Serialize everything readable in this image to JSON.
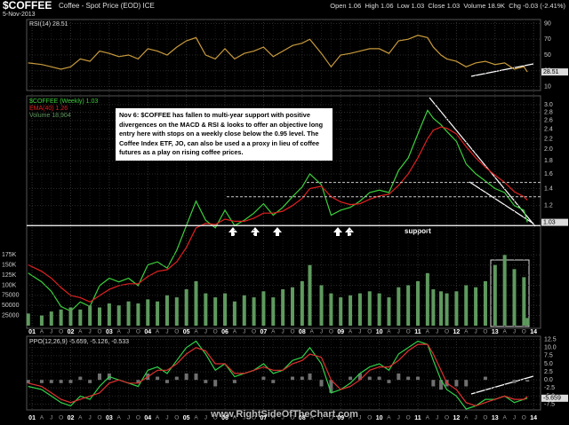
{
  "header": {
    "symbol": "$COFFEE",
    "name": "Coffee - Spot Price (EOD) ICE",
    "date": "5-Nov-2013",
    "quote": "Open 1.06  High 1.06  Low 1.03  Close 1.03  Volume 18.9K  Chg -0.03 (-2.41%)"
  },
  "annotation": "Nov 6: $COFFEE has fallen to multi-year support with positive divergences on the MACD & RSI & looks to offer an objective long entry here with stops on a weekly close below the 0.95 level.  The Coffee Index ETF, JO, can also be used a a proxy in lieu of coffee futures as a play on rising coffee prices.",
  "support_label": "support",
  "watermark": "www.RightSideOfTheChart.com",
  "chart_data": [
    {
      "type": "line",
      "title": "RSI(14) 28.51",
      "xlim": [
        2000.86,
        2014.18
      ],
      "ylim": [
        5,
        95
      ],
      "yticks": [
        90,
        70,
        50,
        30,
        10
      ],
      "x": [
        2000.9,
        2001.25,
        2001.5,
        2001.75,
        2002.0,
        2002.25,
        2002.5,
        2002.75,
        2003.0,
        2003.25,
        2003.5,
        2003.75,
        2004.0,
        2004.25,
        2004.5,
        2004.75,
        2005.0,
        2005.25,
        2005.5,
        2005.75,
        2006.0,
        2006.25,
        2006.5,
        2006.75,
        2007.0,
        2007.25,
        2007.5,
        2007.75,
        2008.0,
        2008.2,
        2008.5,
        2008.75,
        2009.0,
        2009.25,
        2009.5,
        2009.75,
        2010.0,
        2010.25,
        2010.5,
        2010.75,
        2011.0,
        2011.25,
        2011.4,
        2011.6,
        2011.75,
        2012.0,
        2012.25,
        2012.5,
        2012.75,
        2013.0,
        2013.25,
        2013.5,
        2013.75,
        2013.84
      ],
      "series": [
        {
          "color": "#c89a3c",
          "values": [
            40,
            38,
            35,
            32,
            35,
            45,
            42,
            55,
            52,
            48,
            50,
            45,
            58,
            55,
            50,
            60,
            68,
            72,
            50,
            45,
            58,
            45,
            52,
            55,
            60,
            48,
            55,
            62,
            65,
            70,
            52,
            35,
            50,
            52,
            55,
            58,
            58,
            52,
            68,
            70,
            75,
            72,
            60,
            50,
            45,
            42,
            35,
            40,
            42,
            38,
            40,
            32,
            35,
            28.51
          ]
        }
      ],
      "current": 28.51
    },
    {
      "type": "line",
      "log_scale": true,
      "grid": true,
      "xlim": [
        2000.86,
        2014.18
      ],
      "ylim": [
        0.4,
        3.25
      ],
      "yticks": [
        {
          "value": 3,
          "label": "3.0"
        },
        {
          "value": 2.8,
          "label": "2.8"
        },
        {
          "value": 2.6,
          "label": "2.6"
        },
        {
          "value": 2.4,
          "label": "2.4"
        },
        {
          "value": 2.2,
          "label": "2.2"
        },
        {
          "value": 2,
          "label": "2.0"
        },
        {
          "value": 1.8,
          "label": "1.8"
        },
        {
          "value": 1.6,
          "label": "1.6"
        },
        {
          "value": 1.4,
          "label": "1.4"
        },
        {
          "value": 1.2,
          "label": "1.2"
        }
      ],
      "xticks": [
        {
          "value": 2001,
          "label": "01"
        },
        {
          "value": 2001.25,
          "label": "A"
        },
        {
          "value": 2001.5,
          "label": "J"
        },
        {
          "value": 2001.75,
          "label": "O"
        },
        {
          "value": 2002,
          "label": "02"
        },
        {
          "value": 2002.25,
          "label": "A"
        },
        {
          "value": 2002.5,
          "label": "J"
        },
        {
          "value": 2002.75,
          "label": "O"
        },
        {
          "value": 2003,
          "label": "03"
        },
        {
          "value": 2003.25,
          "label": "A"
        },
        {
          "value": 2003.5,
          "label": "J"
        },
        {
          "value": 2003.75,
          "label": "O"
        },
        {
          "value": 2004,
          "label": "04"
        },
        {
          "value": 2004.25,
          "label": "A"
        },
        {
          "value": 2004.5,
          "label": "J"
        },
        {
          "value": 2004.75,
          "label": "O"
        },
        {
          "value": 2005,
          "label": "05"
        },
        {
          "value": 2005.25,
          "label": "A"
        },
        {
          "value": 2005.5,
          "label": "J"
        },
        {
          "value": 2005.75,
          "label": "O"
        },
        {
          "value": 2006,
          "label": "06"
        },
        {
          "value": 2006.25,
          "label": "A"
        },
        {
          "value": 2006.5,
          "label": "J"
        },
        {
          "value": 2006.75,
          "label": "O"
        },
        {
          "value": 2007,
          "label": "07"
        },
        {
          "value": 2007.25,
          "label": "A"
        },
        {
          "value": 2007.5,
          "label": "J"
        },
        {
          "value": 2007.75,
          "label": "O"
        },
        {
          "value": 2008,
          "label": "08"
        },
        {
          "value": 2008.25,
          "label": "A"
        },
        {
          "value": 2008.5,
          "label": "J"
        },
        {
          "value": 2008.75,
          "label": "O"
        },
        {
          "value": 2009,
          "label": "09"
        },
        {
          "value": 2009.25,
          "label": "A"
        },
        {
          "value": 2009.5,
          "label": "J"
        },
        {
          "value": 2009.75,
          "label": "O"
        },
        {
          "value": 2010,
          "label": "10"
        },
        {
          "value": 2010.25,
          "label": "A"
        },
        {
          "value": 2010.5,
          "label": "J"
        },
        {
          "value": 2010.75,
          "label": "O"
        },
        {
          "value": 2011,
          "label": "11"
        },
        {
          "value": 2011.25,
          "label": "A"
        },
        {
          "value": 2011.5,
          "label": "J"
        },
        {
          "value": 2011.75,
          "label": "O"
        },
        {
          "value": 2012,
          "label": "12"
        },
        {
          "value": 2012.25,
          "label": "A"
        },
        {
          "value": 2012.5,
          "label": "J"
        },
        {
          "value": 2012.75,
          "label": "O"
        },
        {
          "value": 2013,
          "label": "13"
        },
        {
          "value": 2013.25,
          "label": "A"
        },
        {
          "value": 2013.5,
          "label": "J"
        },
        {
          "value": 2013.75,
          "label": "O"
        },
        {
          "value": 2014,
          "label": "14"
        }
      ],
      "x": [
        2000.9,
        2001.25,
        2001.5,
        2001.75,
        2002.0,
        2002.25,
        2002.5,
        2002.75,
        2003.0,
        2003.25,
        2003.5,
        2003.75,
        2004.0,
        2004.25,
        2004.5,
        2004.75,
        2005.0,
        2005.25,
        2005.5,
        2005.75,
        2006.0,
        2006.25,
        2006.5,
        2006.75,
        2007.0,
        2007.25,
        2007.5,
        2007.75,
        2008.0,
        2008.2,
        2008.5,
        2008.75,
        2009.0,
        2009.25,
        2009.5,
        2009.75,
        2010.0,
        2010.25,
        2010.5,
        2010.75,
        2011.0,
        2011.25,
        2011.4,
        2011.6,
        2011.75,
        2012.0,
        2012.25,
        2012.5,
        2012.75,
        2013.0,
        2013.25,
        2013.5,
        2013.75,
        2013.84
      ],
      "series": [
        {
          "name": "$COFFEE (Weekly) 1.03",
          "color": "#3ccf3c",
          "values": [
            0.65,
            0.6,
            0.55,
            0.48,
            0.46,
            0.5,
            0.48,
            0.58,
            0.62,
            0.6,
            0.62,
            0.58,
            0.7,
            0.72,
            0.68,
            0.8,
            1.0,
            1.25,
            1.05,
            0.98,
            1.15,
            1.0,
            1.05,
            1.12,
            1.22,
            1.1,
            1.18,
            1.3,
            1.42,
            1.6,
            1.45,
            1.1,
            1.15,
            1.18,
            1.25,
            1.35,
            1.38,
            1.35,
            1.65,
            1.85,
            2.3,
            2.85,
            2.65,
            2.5,
            2.35,
            2.15,
            1.75,
            1.6,
            1.5,
            1.4,
            1.35,
            1.2,
            1.15,
            1.03
          ]
        },
        {
          "name": "EMA(40) 1.26",
          "color": "#e02020",
          "values": [
            0.7,
            0.66,
            0.62,
            0.57,
            0.53,
            0.52,
            0.5,
            0.53,
            0.56,
            0.58,
            0.59,
            0.59,
            0.63,
            0.66,
            0.67,
            0.72,
            0.82,
            0.98,
            1.02,
            1.01,
            1.06,
            1.04,
            1.04,
            1.07,
            1.12,
            1.12,
            1.14,
            1.2,
            1.28,
            1.4,
            1.43,
            1.3,
            1.24,
            1.21,
            1.22,
            1.27,
            1.31,
            1.33,
            1.44,
            1.6,
            1.85,
            2.2,
            2.38,
            2.45,
            2.42,
            2.3,
            2.05,
            1.85,
            1.7,
            1.58,
            1.48,
            1.36,
            1.3,
            1.26
          ]
        }
      ],
      "support_level": 1.0,
      "dashed_levels": [
        1.48,
        1.3
      ],
      "current": 1.03
    },
    {
      "type": "bar",
      "xlim": [
        2000.86,
        2014.18
      ],
      "ylim": [
        0,
        200000
      ],
      "yticks": [
        {
          "value": 175000,
          "label": "175K"
        },
        {
          "value": 150000,
          "label": "150K"
        },
        {
          "value": 125000,
          "label": "125K"
        },
        {
          "value": 100000,
          "label": "100K"
        },
        75000,
        50000,
        25000
      ],
      "x": [
        2000.9,
        2001.25,
        2001.5,
        2001.75,
        2002.0,
        2002.25,
        2002.5,
        2002.75,
        2003.0,
        2003.25,
        2003.5,
        2003.75,
        2004.0,
        2004.25,
        2004.5,
        2004.75,
        2005.0,
        2005.25,
        2005.5,
        2005.75,
        2006.0,
        2006.25,
        2006.5,
        2006.75,
        2007.0,
        2007.25,
        2007.5,
        2007.75,
        2008.0,
        2008.2,
        2008.5,
        2008.75,
        2009.0,
        2009.25,
        2009.5,
        2009.75,
        2010.0,
        2010.25,
        2010.5,
        2010.75,
        2011.0,
        2011.25,
        2011.4,
        2011.6,
        2011.75,
        2012.0,
        2012.25,
        2012.5,
        2012.75,
        2013.0,
        2013.25,
        2013.5,
        2013.75,
        2013.84
      ],
      "series": [
        {
          "name": "Volume 18,904",
          "color": "#5f9a5f",
          "values": [
            30000,
            25000,
            35000,
            40000,
            45000,
            40000,
            50000,
            45000,
            55000,
            50000,
            60000,
            55000,
            65000,
            60000,
            75000,
            70000,
            90000,
            110000,
            80000,
            70000,
            80000,
            60000,
            75000,
            70000,
            85000,
            70000,
            90000,
            95000,
            110000,
            150000,
            100000,
            80000,
            70000,
            75000,
            80000,
            85000,
            80000,
            70000,
            95000,
            100000,
            110000,
            130000,
            90000,
            85000,
            80000,
            85000,
            100000,
            95000,
            110000,
            150000,
            175000,
            140000,
            120000,
            18904
          ]
        }
      ]
    },
    {
      "type": "line",
      "title": "PPO(12,26,9) -5.659, -5.126, -0.533",
      "xlim": [
        2000.86,
        2014.18
      ],
      "ylim": [
        -9,
        13.5
      ],
      "yticks": [
        12.5,
        {
          "value": 10,
          "label": "10.0"
        },
        7.5,
        {
          "value": 5,
          "label": "5.0"
        },
        2.5,
        {
          "value": 0,
          "label": "0.0"
        },
        -2.5,
        {
          "value": -5,
          "label": "-5.0"
        },
        -7.5
      ],
      "x": [
        2000.9,
        2001.25,
        2001.5,
        2001.75,
        2002.0,
        2002.25,
        2002.5,
        2002.75,
        2003.0,
        2003.25,
        2003.5,
        2003.75,
        2004.0,
        2004.25,
        2004.5,
        2004.75,
        2005.0,
        2005.25,
        2005.5,
        2005.75,
        2006.0,
        2006.25,
        2006.5,
        2006.75,
        2007.0,
        2007.25,
        2007.5,
        2007.75,
        2008.0,
        2008.2,
        2008.5,
        2008.75,
        2009.0,
        2009.25,
        2009.5,
        2009.75,
        2010.0,
        2010.25,
        2010.5,
        2010.75,
        2011.0,
        2011.25,
        2011.4,
        2011.6,
        2011.75,
        2012.0,
        2012.25,
        2012.5,
        2012.75,
        2013.0,
        2013.25,
        2013.5,
        2013.75,
        2013.84
      ],
      "series": [
        {
          "type": "bar",
          "color": "#707070",
          "values": [
            -1,
            -1,
            -1,
            -1,
            -1,
            1,
            -1,
            2,
            2,
            0,
            0,
            -1,
            2,
            1,
            -1,
            1,
            2,
            2,
            -1,
            -2,
            0,
            -1,
            0,
            0,
            1,
            -1,
            0,
            1,
            1,
            2,
            -2,
            -4,
            0,
            1,
            2,
            1,
            1,
            -1,
            2,
            1,
            1,
            0,
            -2,
            -3,
            -2,
            -2,
            -2,
            0,
            1,
            0,
            0,
            -1,
            0,
            -0.533
          ]
        },
        {
          "color": "#2fd04a",
          "values": [
            -2,
            -3,
            -5,
            -7,
            -8,
            -5,
            -6,
            -2,
            1,
            0,
            -1,
            -2,
            3,
            4,
            2,
            6,
            10,
            12,
            8,
            3,
            5,
            1,
            2,
            3,
            5,
            2,
            3,
            6,
            7,
            10,
            5,
            -4,
            -3,
            -1,
            2,
            4,
            5,
            3,
            8,
            10,
            12,
            11,
            6,
            0,
            -3,
            -5,
            -9,
            -8,
            -6,
            -6,
            -5,
            -7,
            -6,
            -5.659
          ]
        },
        {
          "color": "#e03030",
          "values": [
            -1,
            -2,
            -4,
            -6,
            -7,
            -6,
            -5,
            -4,
            -1,
            0,
            -1,
            -1,
            1,
            3,
            3,
            5,
            8,
            10,
            9,
            5,
            5,
            2,
            2,
            3,
            4,
            3,
            3,
            5,
            6,
            8,
            7,
            0,
            -3,
            -2,
            0,
            3,
            4,
            4,
            6,
            9,
            11,
            11,
            8,
            3,
            -1,
            -3,
            -7,
            -8,
            -7,
            -6,
            -5,
            -6,
            -6,
            -5.126
          ]
        }
      ],
      "current": -5.659
    }
  ]
}
